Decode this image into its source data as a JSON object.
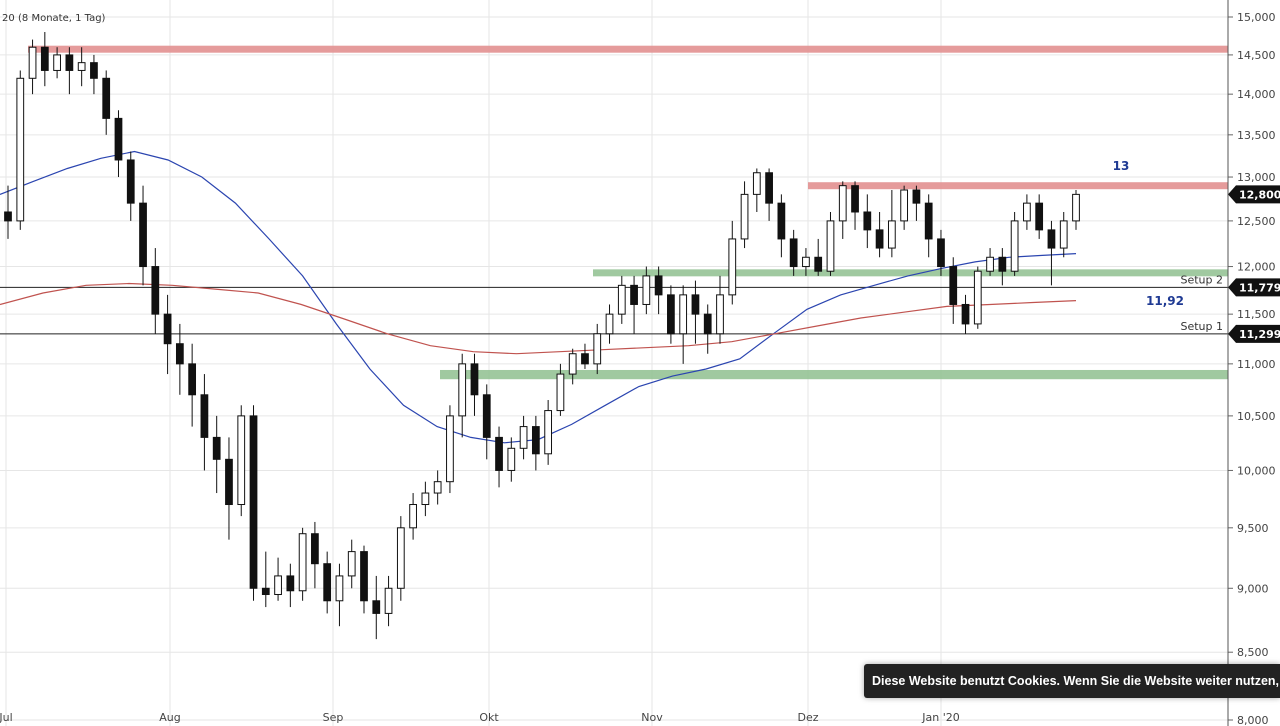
{
  "header": {
    "prefix": "20",
    "period": "(8 Monate, 1 Tag)"
  },
  "chart_data": {
    "type": "candlestick",
    "y_axis": {
      "ticks": [
        "15,000",
        "14,500",
        "14,000",
        "13,500",
        "13,000",
        "12,500",
        "12,000",
        "11,500",
        "11,000",
        "10,500",
        "10,000",
        "9,500",
        "9,000",
        "8,500",
        "8,000"
      ],
      "tick_values": [
        15.0,
        14.5,
        14.0,
        13.5,
        13.0,
        12.5,
        12.0,
        11.5,
        11.0,
        10.5,
        10.0,
        9.5,
        9.0,
        8.5,
        8.0
      ],
      "log_scale": true,
      "range": [
        8.0,
        15.0
      ],
      "grid": true
    },
    "x_axis": {
      "labels": [
        "Jul",
        "Aug",
        "Sep",
        "Okt",
        "Nov",
        "Dez",
        "Jan '20"
      ],
      "grid": true
    },
    "zones": [
      {
        "kind": "resistance",
        "from": 14.55,
        "to": 14.62,
        "color": "#e08a8a"
      },
      {
        "kind": "resistance",
        "from": 12.86,
        "to": 12.94,
        "color": "#e08a8a"
      },
      {
        "kind": "support",
        "from": 11.9,
        "to": 11.97,
        "color": "#8fbf8f"
      },
      {
        "kind": "support",
        "from": 10.85,
        "to": 10.94,
        "color": "#8fbf8f"
      }
    ],
    "levels": [
      {
        "label": "Setup 2",
        "value": 11.779,
        "price_label": "11,779"
      },
      {
        "label": "Setup 1",
        "value": 11.299,
        "price_label": "11,299"
      }
    ],
    "last_price": {
      "value": 12.8,
      "label": "12,800"
    },
    "annotations": [
      {
        "text": "13",
        "color": "#1f3a93"
      },
      {
        "text": "11,92",
        "color": "#1f3a93"
      }
    ],
    "moving_averages": [
      {
        "color": "#2b45b0",
        "points": [
          [
            0,
            12.8
          ],
          [
            1,
            12.95
          ],
          [
            2,
            13.1
          ],
          [
            3,
            13.22
          ],
          [
            4,
            13.3
          ],
          [
            5,
            13.2
          ],
          [
            6,
            13.0
          ],
          [
            7,
            12.7
          ],
          [
            8,
            12.3
          ],
          [
            9,
            11.9
          ],
          [
            10,
            11.4
          ],
          [
            11,
            10.95
          ],
          [
            12,
            10.6
          ],
          [
            13,
            10.4
          ],
          [
            14,
            10.3
          ],
          [
            15,
            10.25
          ],
          [
            16,
            10.28
          ],
          [
            17,
            10.42
          ],
          [
            18,
            10.6
          ],
          [
            19,
            10.78
          ],
          [
            20,
            10.88
          ],
          [
            21,
            10.95
          ],
          [
            22,
            11.05
          ],
          [
            23,
            11.3
          ],
          [
            24,
            11.55
          ],
          [
            25,
            11.7
          ],
          [
            26,
            11.8
          ],
          [
            27,
            11.9
          ],
          [
            28,
            11.98
          ],
          [
            29,
            12.05
          ],
          [
            30,
            12.1
          ],
          [
            31,
            12.12
          ],
          [
            32,
            12.14
          ]
        ]
      },
      {
        "color": "#c0534f",
        "points": [
          [
            0,
            11.6
          ],
          [
            1,
            11.72
          ],
          [
            2,
            11.8
          ],
          [
            3,
            11.82
          ],
          [
            4,
            11.8
          ],
          [
            5,
            11.76
          ],
          [
            6,
            11.72
          ],
          [
            7,
            11.6
          ],
          [
            8,
            11.45
          ],
          [
            9,
            11.3
          ],
          [
            10,
            11.18
          ],
          [
            11,
            11.12
          ],
          [
            12,
            11.1
          ],
          [
            13,
            11.12
          ],
          [
            14,
            11.14
          ],
          [
            15,
            11.16
          ],
          [
            16,
            11.18
          ],
          [
            17,
            11.22
          ],
          [
            18,
            11.3
          ],
          [
            19,
            11.38
          ],
          [
            20,
            11.46
          ],
          [
            21,
            11.52
          ],
          [
            22,
            11.58
          ],
          [
            23,
            11.6
          ],
          [
            24,
            11.62
          ],
          [
            25,
            11.64
          ]
        ]
      }
    ],
    "candles": [
      [
        12.6,
        12.5,
        12.9,
        12.3
      ],
      [
        12.5,
        14.2,
        14.3,
        12.4
      ],
      [
        14.2,
        14.6,
        14.7,
        14.0
      ],
      [
        14.6,
        14.3,
        14.8,
        14.1
      ],
      [
        14.3,
        14.5,
        14.6,
        14.2
      ],
      [
        14.5,
        14.3,
        14.6,
        14.0
      ],
      [
        14.3,
        14.4,
        14.6,
        14.1
      ],
      [
        14.4,
        14.2,
        14.5,
        14.0
      ],
      [
        14.2,
        13.7,
        14.3,
        13.5
      ],
      [
        13.7,
        13.2,
        13.8,
        13.0
      ],
      [
        13.2,
        12.7,
        13.3,
        12.5
      ],
      [
        12.7,
        12.0,
        12.9,
        11.8
      ],
      [
        12.0,
        11.5,
        12.2,
        11.3
      ],
      [
        11.5,
        11.2,
        11.7,
        10.9
      ],
      [
        11.2,
        11.0,
        11.4,
        10.7
      ],
      [
        11.0,
        10.7,
        11.2,
        10.4
      ],
      [
        10.7,
        10.3,
        10.9,
        10.0
      ],
      [
        10.3,
        10.1,
        10.5,
        9.8
      ],
      [
        10.1,
        9.7,
        10.3,
        9.4
      ],
      [
        9.7,
        10.5,
        10.6,
        9.6
      ],
      [
        10.5,
        9.0,
        10.6,
        8.9
      ],
      [
        9.0,
        8.95,
        9.3,
        8.85
      ],
      [
        8.95,
        9.1,
        9.25,
        8.9
      ],
      [
        9.1,
        8.98,
        9.2,
        8.85
      ],
      [
        8.98,
        9.45,
        9.5,
        8.9
      ],
      [
        9.45,
        9.2,
        9.55,
        9.0
      ],
      [
        9.2,
        8.9,
        9.3,
        8.8
      ],
      [
        8.9,
        9.1,
        9.2,
        8.7
      ],
      [
        9.1,
        9.3,
        9.4,
        9.0
      ],
      [
        9.3,
        8.9,
        9.35,
        8.8
      ],
      [
        8.9,
        8.8,
        9.1,
        8.6
      ],
      [
        8.8,
        9.0,
        9.1,
        8.7
      ],
      [
        9.0,
        9.5,
        9.6,
        8.9
      ],
      [
        9.5,
        9.7,
        9.8,
        9.4
      ],
      [
        9.7,
        9.8,
        9.9,
        9.6
      ],
      [
        9.8,
        9.9,
        10.0,
        9.7
      ],
      [
        9.9,
        10.5,
        10.6,
        9.8
      ],
      [
        10.5,
        11.0,
        11.1,
        10.3
      ],
      [
        11.0,
        10.7,
        11.1,
        10.5
      ],
      [
        10.7,
        10.3,
        10.8,
        10.1
      ],
      [
        10.3,
        10.0,
        10.4,
        9.85
      ],
      [
        10.0,
        10.2,
        10.3,
        9.9
      ],
      [
        10.2,
        10.4,
        10.5,
        10.1
      ],
      [
        10.4,
        10.15,
        10.5,
        10.0
      ],
      [
        10.15,
        10.55,
        10.65,
        10.05
      ],
      [
        10.55,
        10.9,
        11.0,
        10.5
      ],
      [
        10.9,
        11.1,
        11.15,
        10.8
      ],
      [
        11.1,
        11.0,
        11.2,
        10.95
      ],
      [
        11.0,
        11.3,
        11.4,
        10.9
      ],
      [
        11.3,
        11.5,
        11.6,
        11.2
      ],
      [
        11.5,
        11.8,
        11.9,
        11.4
      ],
      [
        11.8,
        11.6,
        11.9,
        11.3
      ],
      [
        11.6,
        11.9,
        12.0,
        11.5
      ],
      [
        11.9,
        11.7,
        12.0,
        11.5
      ],
      [
        11.7,
        11.3,
        11.8,
        11.2
      ],
      [
        11.3,
        11.7,
        11.8,
        11.0
      ],
      [
        11.7,
        11.5,
        11.85,
        11.2
      ],
      [
        11.5,
        11.3,
        11.6,
        11.1
      ],
      [
        11.3,
        11.7,
        11.9,
        11.2
      ],
      [
        11.7,
        12.3,
        12.5,
        11.6
      ],
      [
        12.3,
        12.8,
        12.95,
        12.2
      ],
      [
        12.8,
        13.05,
        13.1,
        12.6
      ],
      [
        13.05,
        12.7,
        13.1,
        12.5
      ],
      [
        12.7,
        12.3,
        12.8,
        12.1
      ],
      [
        12.3,
        12.0,
        12.4,
        11.9
      ],
      [
        12.0,
        12.1,
        12.2,
        11.9
      ],
      [
        12.1,
        11.95,
        12.3,
        11.9
      ],
      [
        11.95,
        12.5,
        12.6,
        11.9
      ],
      [
        12.5,
        12.9,
        12.95,
        12.3
      ],
      [
        12.9,
        12.6,
        12.95,
        12.4
      ],
      [
        12.6,
        12.4,
        12.8,
        12.2
      ],
      [
        12.4,
        12.2,
        12.6,
        12.1
      ],
      [
        12.2,
        12.5,
        12.85,
        12.1
      ],
      [
        12.5,
        12.85,
        12.9,
        12.4
      ],
      [
        12.85,
        12.7,
        12.9,
        12.5
      ],
      [
        12.7,
        12.3,
        12.8,
        12.1
      ],
      [
        12.3,
        12.0,
        12.4,
        11.9
      ],
      [
        12.0,
        11.6,
        12.1,
        11.4
      ],
      [
        11.6,
        11.4,
        11.7,
        11.3
      ],
      [
        11.4,
        11.95,
        12.0,
        11.35
      ],
      [
        11.95,
        12.1,
        12.2,
        11.9
      ],
      [
        12.1,
        11.95,
        12.2,
        11.8
      ],
      [
        11.95,
        12.5,
        12.6,
        11.9
      ],
      [
        12.5,
        12.7,
        12.8,
        12.4
      ],
      [
        12.7,
        12.4,
        12.8,
        12.3
      ],
      [
        12.4,
        12.2,
        12.5,
        11.8
      ],
      [
        12.2,
        12.5,
        12.6,
        12.1
      ],
      [
        12.5,
        12.8,
        12.85,
        12.4
      ]
    ]
  },
  "cookie_banner": {
    "text": "Diese Website benutzt Cookies. Wenn Sie die Website weiter nutzen, gehen wir von Ihrem Einverständnis aus."
  }
}
